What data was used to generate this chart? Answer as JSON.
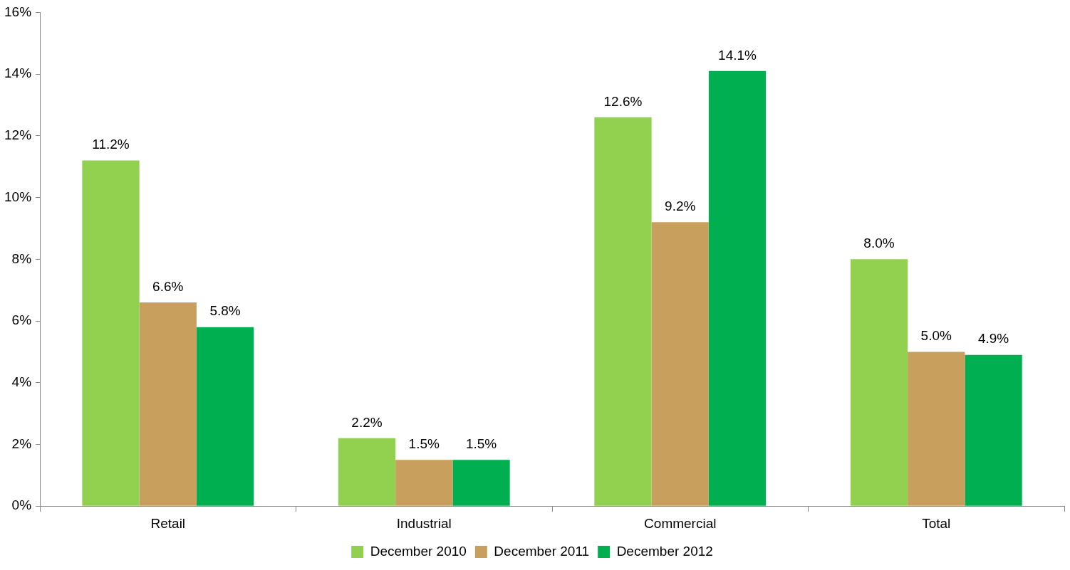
{
  "chart_data": {
    "type": "bar",
    "categories": [
      "Retail",
      "Industrial",
      "Commercial",
      "Total"
    ],
    "series": [
      {
        "name": "December 2010",
        "color": "#92d050",
        "values": [
          11.2,
          2.2,
          12.6,
          8.0
        ],
        "value_labels": [
          "11.2%",
          "2.2%",
          "12.6%",
          "8.0%"
        ]
      },
      {
        "name": "December 2011",
        "color": "#c89f5d",
        "values": [
          6.6,
          1.5,
          9.2,
          5.0
        ],
        "value_labels": [
          "6.6%",
          "1.5%",
          "9.2%",
          "5.0%"
        ]
      },
      {
        "name": "December 2012",
        "color": "#00b050",
        "values": [
          5.8,
          1.5,
          14.1,
          4.9
        ],
        "value_labels": [
          "5.8%",
          "1.5%",
          "14.1%",
          "4.9%"
        ]
      }
    ],
    "ylim": [
      0,
      16
    ],
    "yticks": [
      {
        "value": 0,
        "label": "0%"
      },
      {
        "value": 2,
        "label": "2%"
      },
      {
        "value": 4,
        "label": "4%"
      },
      {
        "value": 6,
        "label": "6%"
      },
      {
        "value": 8,
        "label": "8%"
      },
      {
        "value": 10,
        "label": "10%"
      },
      {
        "value": 12,
        "label": "12%"
      },
      {
        "value": 14,
        "label": "14%"
      },
      {
        "value": 16,
        "label": "16%"
      }
    ],
    "grid": false,
    "legend": "bottom"
  }
}
